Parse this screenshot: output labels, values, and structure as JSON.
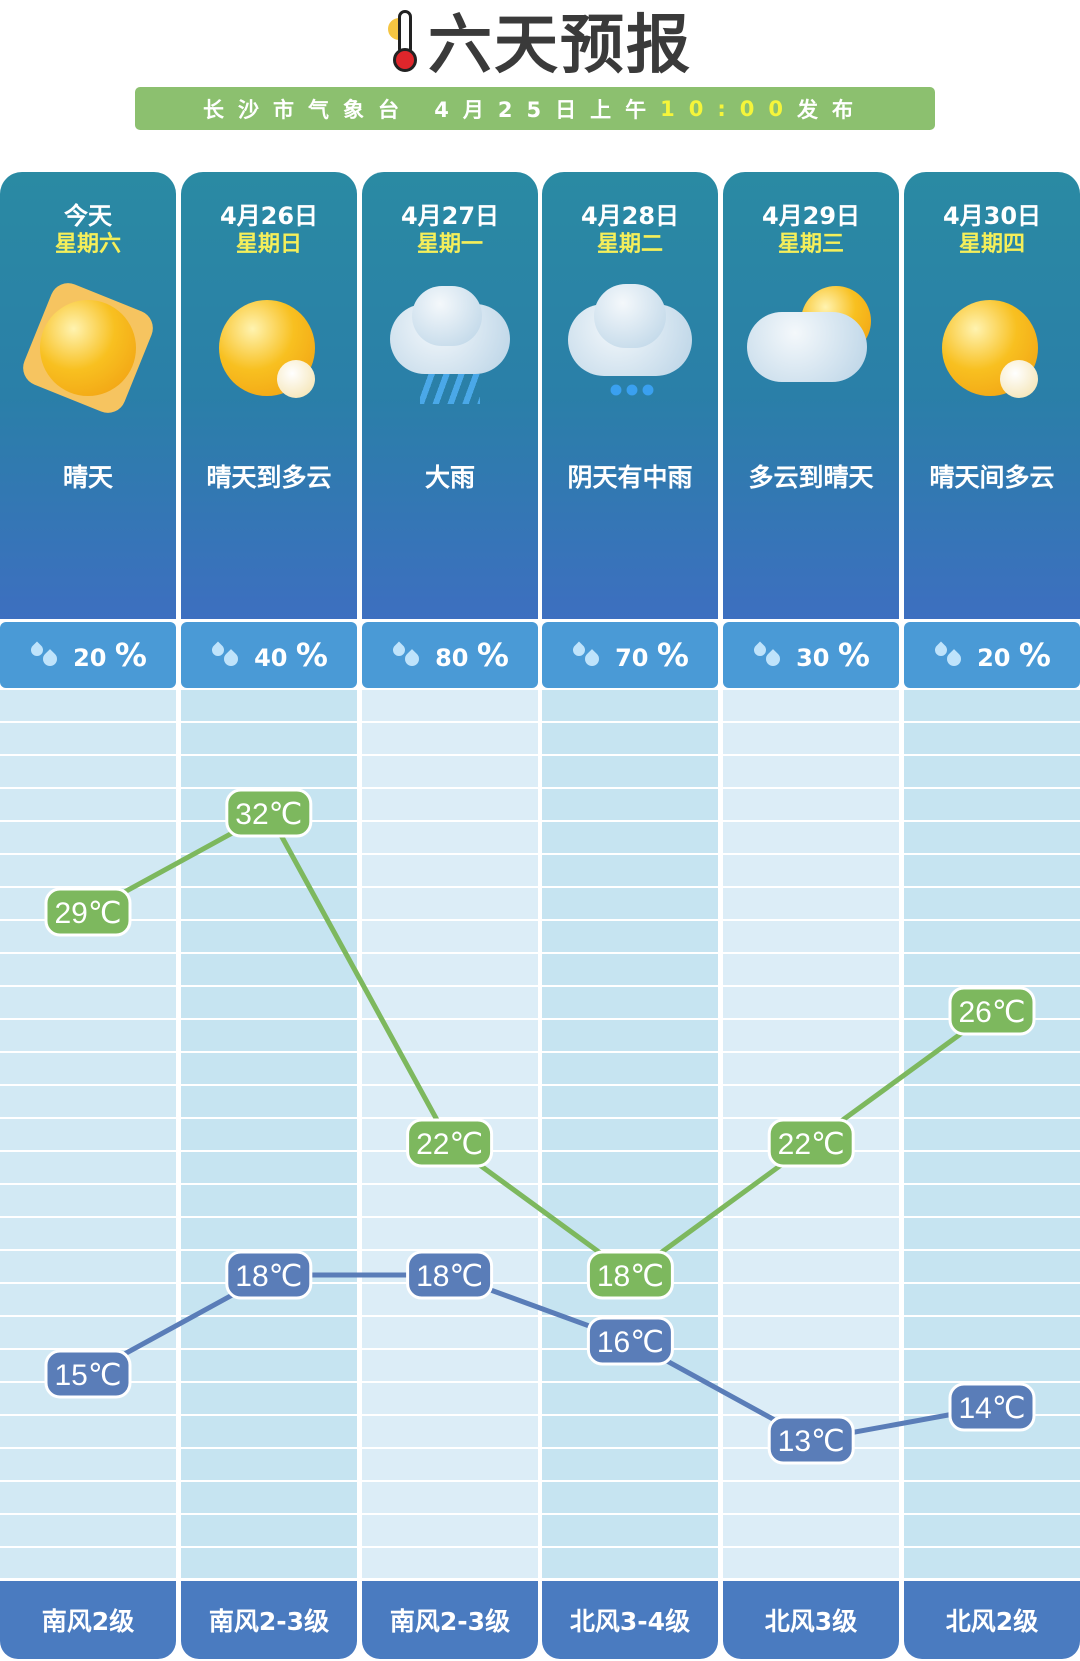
{
  "title": "六天预报",
  "subtitle": {
    "prefix": "长沙市气象台 4月25日上午",
    "time": "10:00",
    "suffix": "发布"
  },
  "colors": {
    "high": "#7db85e",
    "low": "#5a7db8",
    "header": "#2a85a6",
    "rain": "#4a9ad6",
    "wind": "#4a7bc0",
    "subtitle_bg": "#8cc06f"
  },
  "days": [
    {
      "date": "今天",
      "weekday": "星期六",
      "icon": "sun-icon",
      "desc": "晴天",
      "rain": "20",
      "high": 29,
      "low": 15,
      "wind": "南风2级"
    },
    {
      "date": "4月26日",
      "weekday": "星期日",
      "icon": "sun-cloud-icon",
      "desc": "晴天到多云",
      "rain": "40",
      "high": 32,
      "low": 18,
      "wind": "南风2-3级"
    },
    {
      "date": "4月27日",
      "weekday": "星期一",
      "icon": "heavy-rain-icon",
      "desc": "大雨",
      "rain": "80",
      "high": 22,
      "low": 18,
      "wind": "南风2-3级"
    },
    {
      "date": "4月28日",
      "weekday": "星期二",
      "icon": "cloud-rain-icon",
      "desc": "阴天有中雨",
      "rain": "70",
      "high": 18,
      "low": 16,
      "wind": "北风3-4级"
    },
    {
      "date": "4月29日",
      "weekday": "星期三",
      "icon": "cloud-sun-icon",
      "desc": "多云到晴天",
      "rain": "30",
      "high": 22,
      "low": 13,
      "wind": "北风3级"
    },
    {
      "date": "4月30日",
      "weekday": "星期四",
      "icon": "sun-cloud-icon",
      "desc": "晴天间多云",
      "rain": "20",
      "high": 26,
      "low": 14,
      "wind": "北风2级"
    }
  ],
  "unit": "℃",
  "percent": "%"
}
